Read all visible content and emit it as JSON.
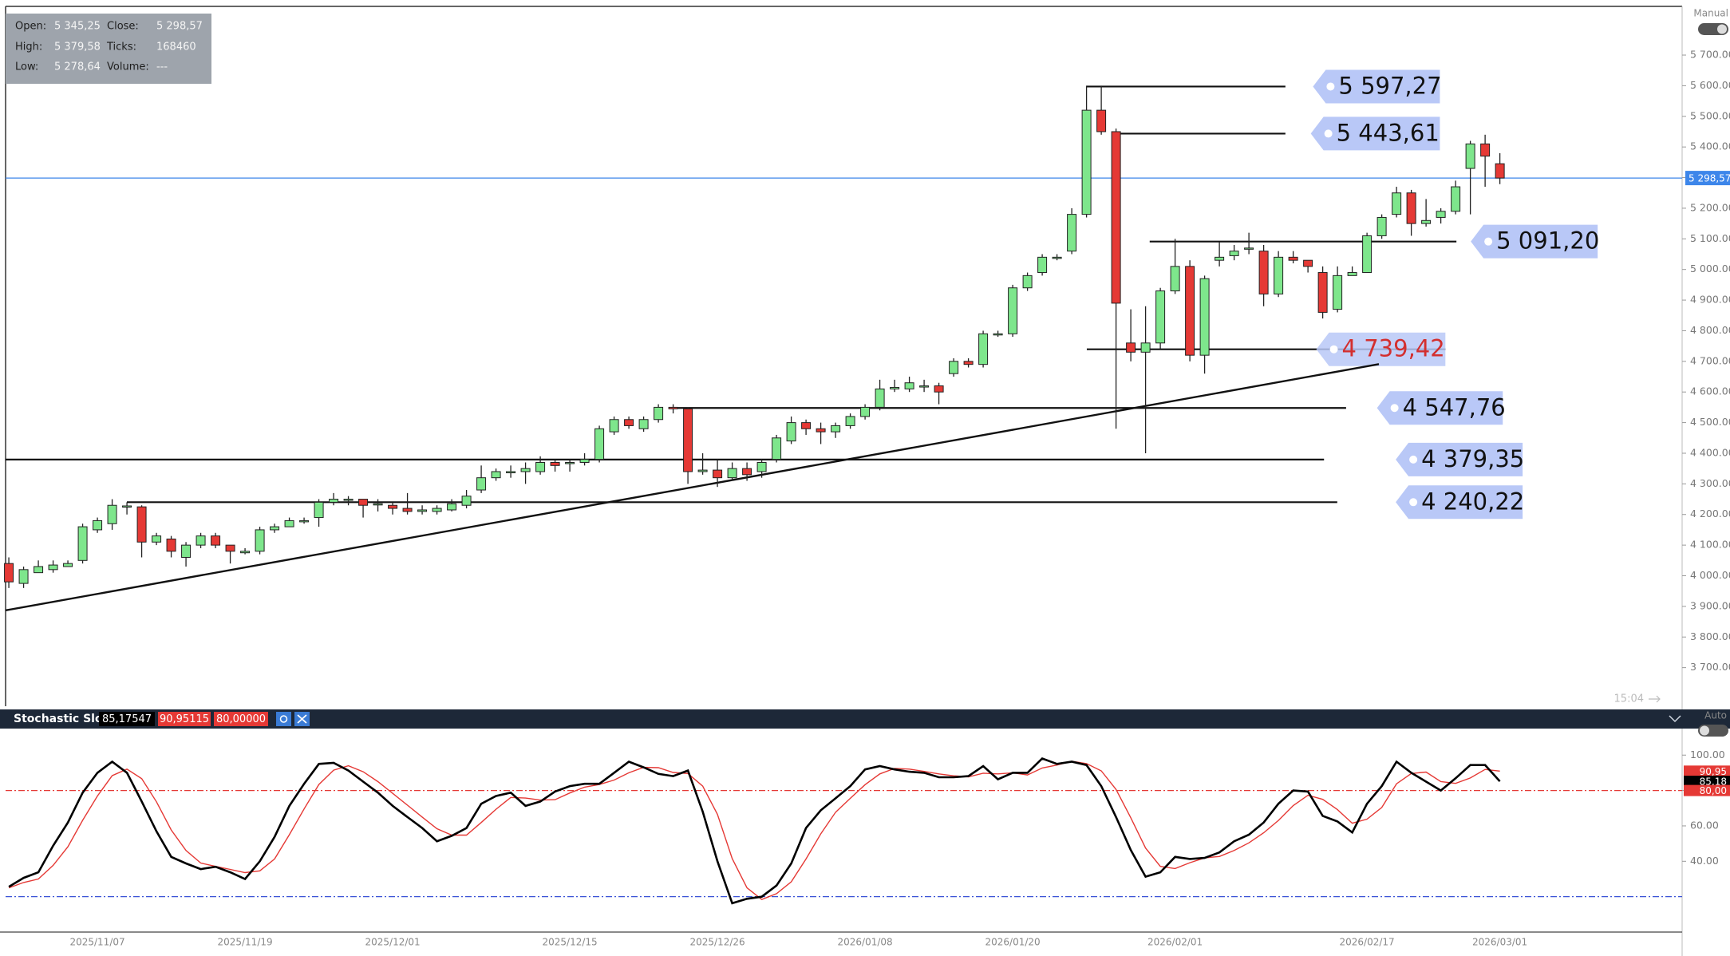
{
  "info": {
    "rows": [
      [
        "Open:",
        "5 345,25",
        "Close:",
        "5 298,57"
      ],
      [
        "High:",
        "5 379,58",
        "Ticks:",
        "168460"
      ],
      [
        "Low:",
        "5 278,64",
        "Volume:",
        "---"
      ]
    ]
  },
  "ui": {
    "mode_label": "Manual",
    "time_label": "15:04",
    "auto_label": "Auto"
  },
  "chart_data": [
    {
      "type": "candlestick",
      "categories": [
        null,
        null,
        null,
        null,
        null,
        null,
        "2025/11/07",
        null,
        null,
        null,
        null,
        null,
        null,
        null,
        null,
        null,
        "2025/11/19",
        null,
        null,
        null,
        null,
        null,
        null,
        null,
        null,
        null,
        "2025/12/01",
        null,
        null,
        null,
        null,
        null,
        null,
        null,
        null,
        null,
        null,
        null,
        "2025/12/15",
        null,
        null,
        null,
        null,
        null,
        null,
        null,
        null,
        null,
        "2025/12/26",
        null,
        null,
        null,
        null,
        null,
        null,
        null,
        null,
        null,
        "2026/01/08",
        null,
        null,
        null,
        null,
        null,
        null,
        null,
        null,
        null,
        "2026/01/20",
        null,
        null,
        null,
        null,
        null,
        null,
        null,
        null,
        null,
        null,
        "2026/02/01",
        null,
        null,
        null,
        null,
        null,
        null,
        null,
        null,
        null,
        null,
        null,
        null,
        "2026/02/17",
        null,
        null,
        null,
        null,
        null,
        null,
        null,
        null,
        "2026/03/01"
      ],
      "open": [
        4040,
        3975,
        4010,
        4020,
        4030,
        4050,
        4150,
        4170,
        4225,
        4225,
        4110,
        4120,
        4060,
        4100,
        4130,
        4100,
        4075,
        4080,
        4150,
        4160,
        4180,
        4190,
        4240,
        4250,
        4250,
        4235,
        4230,
        4220,
        4210,
        4210,
        4215,
        4230,
        4280,
        4320,
        4340,
        4340,
        4340,
        4370,
        4370,
        4370,
        4380,
        4470,
        4510,
        4480,
        4510,
        4550,
        4545,
        4340,
        4345,
        4320,
        4350,
        4340,
        4380,
        4440,
        4500,
        4480,
        4470,
        4490,
        4520,
        4550,
        4610,
        4610,
        4620,
        4620,
        4660,
        4700,
        4690,
        4790,
        4790,
        4940,
        4990,
        5040,
        5060,
        5180,
        5520,
        5450,
        4760,
        4730,
        4760,
        4930,
        5010,
        4720,
        5030,
        5045,
        5070,
        5060,
        4920,
        5040,
        5030,
        4990,
        4870,
        4980,
        4990,
        5110,
        5180,
        5250,
        5150,
        5170,
        5190,
        5330,
        5410,
        5345.25
      ],
      "high": [
        4060,
        4030,
        4050,
        4050,
        4050,
        4170,
        4190,
        4250,
        4240,
        4230,
        4140,
        4130,
        4110,
        4140,
        4140,
        4090,
        4090,
        4160,
        4170,
        4190,
        4190,
        4250,
        4270,
        4260,
        4250,
        4250,
        4240,
        4270,
        4230,
        4230,
        4250,
        4280,
        4360,
        4350,
        4360,
        4370,
        4390,
        4380,
        4380,
        4400,
        4490,
        4520,
        4520,
        4520,
        4560,
        4560,
        4550,
        4400,
        4380,
        4370,
        4370,
        4380,
        4460,
        4520,
        4510,
        4500,
        4500,
        4530,
        4560,
        4640,
        4640,
        4650,
        4640,
        4630,
        4710,
        4710,
        4800,
        4800,
        4950,
        4990,
        5050,
        5050,
        5200,
        5600,
        5600,
        5460,
        4870,
        4880,
        4940,
        5100,
        5030,
        4980,
        5090,
        5080,
        5120,
        5080,
        5060,
        5060,
        5030,
        5010,
        5010,
        5010,
        5120,
        5180,
        5270,
        5260,
        5230,
        5200,
        5290,
        5420,
        5440,
        5379.58
      ],
      "low": [
        3960,
        3960,
        4010,
        4010,
        4030,
        4040,
        4140,
        4150,
        4200,
        4060,
        4100,
        4060,
        4030,
        4090,
        4090,
        4040,
        4070,
        4070,
        4140,
        4160,
        4170,
        4160,
        4230,
        4230,
        4190,
        4210,
        4200,
        4200,
        4200,
        4200,
        4210,
        4220,
        4270,
        4310,
        4320,
        4300,
        4330,
        4340,
        4340,
        4360,
        4370,
        4460,
        4480,
        4470,
        4500,
        4530,
        4300,
        4330,
        4290,
        4310,
        4310,
        4320,
        4370,
        4430,
        4460,
        4430,
        4450,
        4480,
        4510,
        4540,
        4600,
        4600,
        4600,
        4560,
        4650,
        4680,
        4680,
        4780,
        4780,
        4930,
        4980,
        5030,
        5050,
        5170,
        5440,
        4480,
        4700,
        4400,
        4740,
        4920,
        4700,
        4660,
        5010,
        5030,
        5050,
        4880,
        4910,
        5020,
        4990,
        4840,
        4860,
        4980,
        4990,
        5100,
        5170,
        5110,
        5140,
        5150,
        5180,
        5180,
        5270,
        5278.64
      ],
      "close": [
        3980,
        4020,
        4030,
        4035,
        4040,
        4160,
        4180,
        4230,
        4228,
        4110,
        4130,
        4080,
        4100,
        4130,
        4100,
        4080,
        4080,
        4150,
        4160,
        4180,
        4180,
        4240,
        4250,
        4250,
        4230,
        4235,
        4220,
        4210,
        4215,
        4220,
        4235,
        4260,
        4320,
        4340,
        4340,
        4350,
        4370,
        4360,
        4370,
        4380,
        4480,
        4510,
        4490,
        4510,
        4550,
        4545,
        4340,
        4345,
        4320,
        4350,
        4330,
        4370,
        4450,
        4500,
        4480,
        4470,
        4490,
        4520,
        4550,
        4610,
        4615,
        4630,
        4620,
        4600,
        4700,
        4690,
        4790,
        4790,
        4940,
        4980,
        5040,
        5040,
        5180,
        5520,
        5450,
        4890,
        4730,
        4760,
        4930,
        5010,
        4720,
        4970,
        5040,
        5060,
        5070,
        4920,
        5040,
        5030,
        5010,
        4860,
        4980,
        4990,
        5110,
        5170,
        5250,
        5150,
        5160,
        5190,
        5270,
        5410,
        5370,
        5298.57
      ],
      "up_color": "#7ee68c",
      "down_color": "#e53935",
      "ylim": [
        3574,
        5859
      ],
      "yticks": [
        {
          "value": 3700,
          "label": "3 700.00"
        },
        {
          "value": 3800,
          "label": "3 800.00"
        },
        {
          "value": 3900,
          "label": "3 900.00"
        },
        {
          "value": 4000,
          "label": "4 000.00"
        },
        {
          "value": 4100,
          "label": "4 100.00"
        },
        {
          "value": 4200,
          "label": "4 200.00"
        },
        {
          "value": 4300,
          "label": "4 300.00"
        },
        {
          "value": 4400,
          "label": "4 400.00"
        },
        {
          "value": 4500,
          "label": "4 500.00"
        },
        {
          "value": 4600,
          "label": "4 600.00"
        },
        {
          "value": 4700,
          "label": "4 700.00"
        },
        {
          "value": 4800,
          "label": "4 800.00"
        },
        {
          "value": 4900,
          "label": "4 900.00"
        },
        {
          "value": 5000,
          "label": "5 000.00"
        },
        {
          "value": 5100,
          "label": "5 100.00"
        },
        {
          "value": 5200,
          "label": "5 200.00"
        },
        {
          "value": 5300,
          "label": "5 300.00"
        },
        {
          "value": 5400,
          "label": "5 400.00"
        },
        {
          "value": 5500,
          "label": "5 500.00"
        },
        {
          "value": 5600,
          "label": "5 600.00"
        },
        {
          "value": 5700,
          "label": "5 700.00"
        }
      ],
      "levels": [
        {
          "value": 5597.27,
          "label": "5 597,27",
          "color": "#111111"
        },
        {
          "value": 5443.61,
          "label": "5 443,61",
          "color": "#111111"
        },
        {
          "value": 5091.2,
          "label": "5 091,20",
          "color": "#111111"
        },
        {
          "value": 4739.42,
          "label": "4 739,42",
          "color": "#d32f2f"
        },
        {
          "value": 4547.76,
          "label": "4 547,76",
          "color": "#111111"
        },
        {
          "value": 4379.35,
          "label": "4 379,35",
          "color": "#111111"
        },
        {
          "value": 4240.22,
          "label": "4 240,22",
          "color": "#111111"
        }
      ],
      "trendline": [
        3887,
        4691
      ],
      "last_price": {
        "value": 5298.57,
        "label": "5 298,57",
        "color": "#3d86ea"
      }
    },
    {
      "type": "line",
      "title": "Stochastic Slow",
      "value_labels": [
        "85,17547",
        "90,95115",
        "80,00000"
      ],
      "series": [
        {
          "color": "#000000",
          "values": [
            25.6,
            30.6,
            33.8,
            48.8,
            61.9,
            78.8,
            90,
            96.3,
            90,
            73.8,
            56.9,
            42.5,
            38.8,
            35.6,
            36.9,
            33.8,
            30,
            40,
            53.8,
            71.3,
            83.8,
            95,
            95.6,
            91.3,
            85,
            78.8,
            71.3,
            65,
            58.8,
            51.3,
            54.4,
            58.8,
            72.5,
            76.9,
            78.8,
            71.3,
            73.8,
            79.4,
            82.5,
            83.8,
            83.8,
            90,
            96.3,
            93.1,
            89.4,
            88.1,
            91.3,
            68.1,
            40,
            16.3,
            18.8,
            20,
            26.3,
            38.8,
            58.8,
            68.8,
            75.6,
            82.5,
            91.9,
            93.8,
            91.9,
            90.6,
            90,
            87.5,
            87.5,
            88.1,
            93.8,
            86.3,
            90,
            90,
            98.1,
            95,
            96.3,
            94.4,
            82.5,
            65,
            46.3,
            31.3,
            33.8,
            42.5,
            41.3,
            41.9,
            45,
            51.3,
            55,
            61.9,
            72.5,
            80,
            79.4,
            65.6,
            62.5,
            56.3,
            72.5,
            82.5,
            96.3,
            90,
            85,
            80,
            86.9,
            94.4,
            94.4,
            85.18
          ]
        },
        {
          "color": "#e53935",
          "values": [
            25,
            28,
            30,
            37.7,
            48.2,
            63.2,
            76.9,
            88.4,
            92.1,
            86.7,
            73.6,
            57.7,
            46.1,
            39,
            37.1,
            35.4,
            33.6,
            34.6,
            41.3,
            55,
            69.6,
            83.4,
            91.5,
            94,
            90.6,
            85,
            78.4,
            71.7,
            65,
            58.4,
            54.8,
            54.8,
            61.9,
            69.4,
            76.1,
            75.7,
            74.6,
            74.8,
            78.6,
            81.9,
            83.4,
            85.9,
            90,
            93.1,
            92.9,
            90.2,
            89.6,
            82.5,
            66.5,
            41.5,
            25,
            18.4,
            21.7,
            28.4,
            41.3,
            55.5,
            67.7,
            75.6,
            83.3,
            89.4,
            92.5,
            92.1,
            90.8,
            89.4,
            88.3,
            87.7,
            89.8,
            89.4,
            90,
            88.8,
            92.7,
            94.4,
            96.5,
            95.2,
            91.1,
            80.6,
            64.6,
            47.5,
            37.1,
            35.9,
            39.2,
            41.9,
            42.7,
            46.1,
            50.4,
            56.1,
            63.1,
            71.5,
            77.3,
            75,
            69.2,
            61.5,
            63.8,
            70.4,
            83.8,
            89.6,
            90.4,
            85,
            84,
            87.1,
            91.9,
            90.95
          ]
        }
      ],
      "ylim": [
        0,
        115
      ],
      "yticks": [
        {
          "value": 100,
          "label": "100.00"
        },
        {
          "value": 80,
          "label": "80.00"
        },
        {
          "value": 60,
          "label": "60.00"
        },
        {
          "value": 40,
          "label": "40.00"
        }
      ],
      "levels": [
        {
          "value": 80,
          "color": "#e53935"
        },
        {
          "value": 20,
          "color": "#3a52d6"
        }
      ],
      "badges": [
        {
          "value": 90.95,
          "label": "90,95",
          "color": "#e53935"
        },
        {
          "value": 85.18,
          "label": "85,18",
          "color": "#000000"
        },
        {
          "value": 80,
          "label": "80,00",
          "color": "#e53935"
        }
      ]
    }
  ]
}
